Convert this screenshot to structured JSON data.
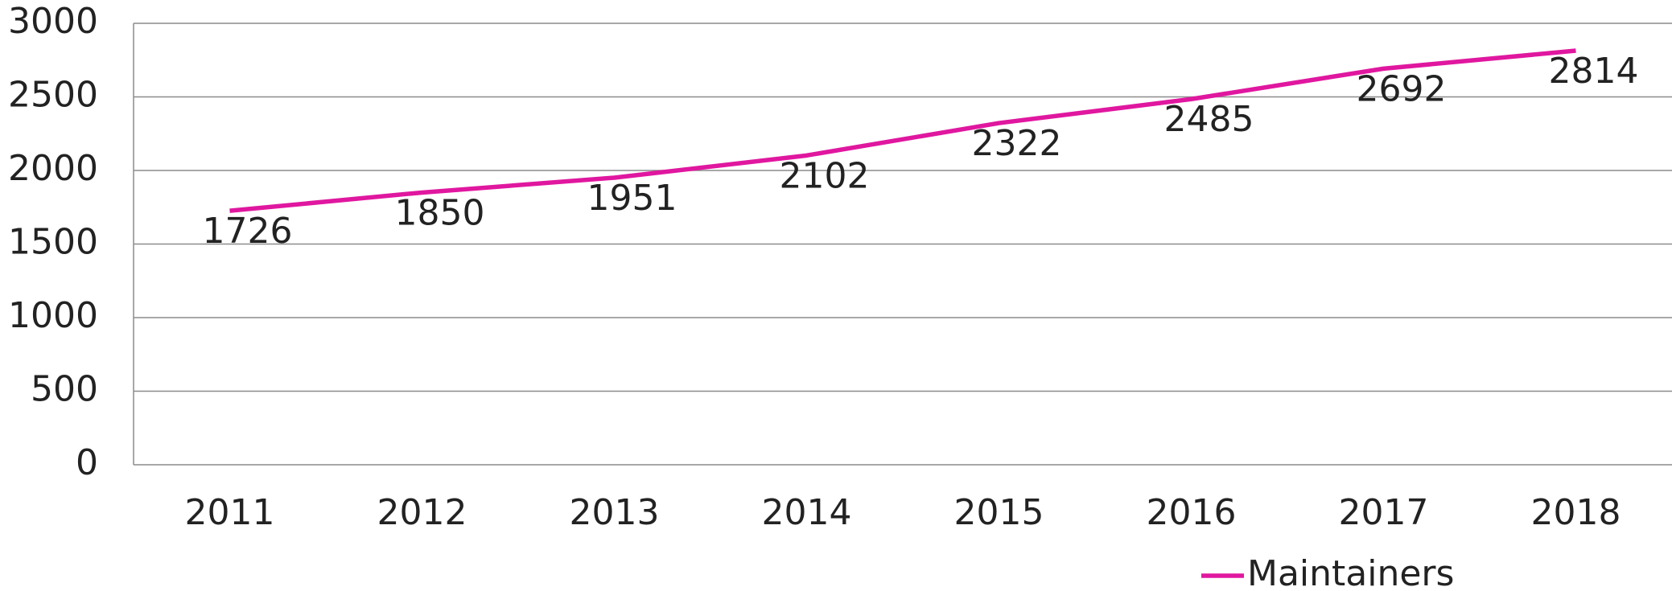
{
  "chart_data": {
    "type": "line",
    "categories": [
      "2011",
      "2012",
      "2013",
      "2014",
      "2015",
      "2016",
      "2017",
      "2018"
    ],
    "series": [
      {
        "name": "Maintainers",
        "color": "#e0179f",
        "values": [
          1726,
          1850,
          1951,
          2102,
          2322,
          2485,
          2692,
          2814
        ]
      }
    ],
    "ylim": [
      0,
      3000
    ],
    "yticks": [
      0,
      500,
      1000,
      1500,
      2000,
      2500,
      3000
    ],
    "grid": true,
    "legend": "bottom"
  }
}
